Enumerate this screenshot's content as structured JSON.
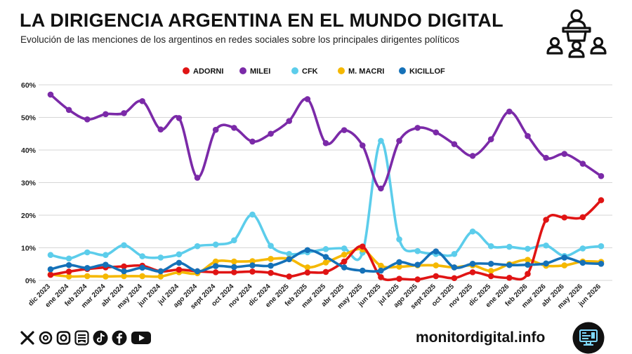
{
  "header": {
    "title": "LA DIRIGENCIA ARGENTINA EN EL MUNDO DIGITAL",
    "subtitle": "Evolución de las menciones de los argentinos en redes sociales sobre los principales dirigentes políticos"
  },
  "footer": {
    "url": "monitordigital.info",
    "social_icons": [
      "x-icon",
      "threads-icon",
      "instagram-icon",
      "substack-icon",
      "tiktok-icon",
      "facebook-icon",
      "youtube-icon"
    ]
  },
  "colors": {
    "ADORNI": "#e01414",
    "MILEI": "#7b2aa8",
    "CFK": "#5ccdeb",
    "M. MACRI": "#f5b800",
    "KICILLOF": "#1571b8",
    "grid": "#d6d6d6",
    "text": "#111111"
  },
  "chart_data": {
    "type": "line",
    "title": "LA DIRIGENCIA ARGENTINA EN EL MUNDO DIGITAL",
    "subtitle": "Evolución de las menciones de los argentinos en redes sociales sobre los principales dirigentes políticos",
    "xlabel": "",
    "ylabel": "",
    "ylim": [
      0,
      60
    ],
    "yticks": [
      "0%",
      "10%",
      "20%",
      "30%",
      "40%",
      "50%",
      "60%"
    ],
    "grid": true,
    "legend_position": "top",
    "categories": [
      "dic 2023",
      "ene 2024",
      "feb 2024",
      "mar 2024",
      "abr 2024",
      "may 2024",
      "jun 2024",
      "jul 2024",
      "ago 2024",
      "sept 2024",
      "oct 2024",
      "nov 2024",
      "dic 2024",
      "ene 2025",
      "feb 2025",
      "mar 2025",
      "abr 2025",
      "may 2025",
      "jun 2025",
      "jul 2025",
      "ago 2025",
      "sept 2025",
      "oct 2025",
      "nov 2025",
      "dic 2025",
      "ene 2026",
      "feb 2026",
      "mar 2026",
      "abr 2026",
      "may 2026",
      "jun 2026"
    ],
    "series": [
      {
        "name": "ADORNI",
        "color": "#e01414",
        "values": [
          1.7,
          2.7,
          3.5,
          4.0,
          4.3,
          4.5,
          2.8,
          3.3,
          2.8,
          2.5,
          2.5,
          2.7,
          2.3,
          1.2,
          2.4,
          2.6,
          5.8,
          10.4,
          1.0,
          0.5,
          0.3,
          1.3,
          0.7,
          2.5,
          1.3,
          0.8,
          2.0,
          18.6,
          19.3,
          19.4,
          24.6
        ]
      },
      {
        "name": "MILEI",
        "color": "#7b2aa8",
        "values": [
          57.0,
          52.3,
          49.4,
          51.0,
          51.3,
          55.0,
          46.3,
          49.8,
          31.5,
          46.2,
          46.8,
          42.6,
          45.0,
          48.9,
          55.6,
          42.1,
          46.1,
          41.4,
          28.2,
          42.8,
          46.8,
          45.4,
          41.8,
          38.2,
          43.3,
          51.8,
          44.3,
          37.6,
          38.8,
          35.8,
          32.0
        ]
      },
      {
        "name": "CFK",
        "color": "#5ccdeb",
        "values": [
          7.8,
          6.7,
          8.6,
          7.8,
          10.8,
          7.4,
          7.0,
          8.0,
          10.5,
          11.0,
          12.3,
          20.2,
          10.6,
          8.1,
          8.6,
          9.6,
          9.8,
          8.5,
          42.8,
          12.6,
          9.0,
          8.1,
          8.1,
          15.0,
          10.5,
          10.3,
          9.7,
          10.7,
          7.5,
          9.8,
          10.5
        ]
      },
      {
        "name": "M. MACRI",
        "color": "#f5b800",
        "values": [
          1.8,
          1.2,
          1.3,
          1.2,
          1.3,
          1.3,
          1.2,
          2.5,
          2.2,
          5.8,
          5.8,
          5.9,
          6.6,
          6.6,
          4.0,
          5.5,
          7.9,
          9.5,
          4.5,
          4.2,
          4.6,
          4.6,
          4.0,
          4.6,
          2.9,
          5.0,
          6.3,
          4.5,
          4.6,
          5.8,
          5.7
        ]
      },
      {
        "name": "KICILLOF",
        "color": "#1571b8",
        "values": [
          3.4,
          4.7,
          3.8,
          4.8,
          2.8,
          3.9,
          2.8,
          5.4,
          2.8,
          4.4,
          4.1,
          4.6,
          4.5,
          6.5,
          9.3,
          7.2,
          4.0,
          3.0,
          3.0,
          5.6,
          4.8,
          8.9,
          4.0,
          5.1,
          5.1,
          4.7,
          4.8,
          5.2,
          7.0,
          5.4,
          5.1
        ]
      }
    ]
  }
}
